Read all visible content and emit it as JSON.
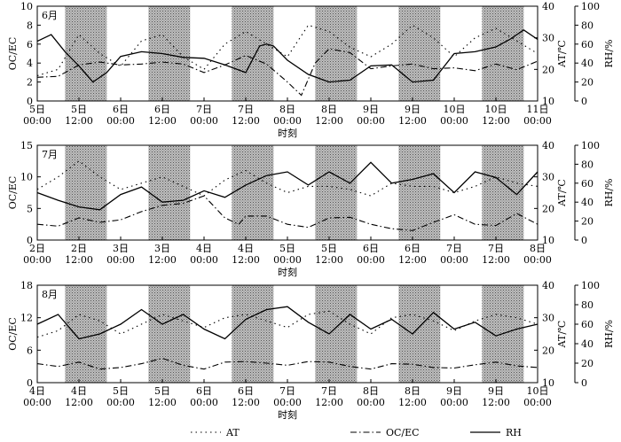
{
  "chart_data": [
    {
      "type": "line",
      "month_label": "6月",
      "x_tick_labels": [
        [
          "5日",
          "00:00"
        ],
        [
          "5日",
          "12:00"
        ],
        [
          "6日",
          "00:00"
        ],
        [
          "6日",
          "12:00"
        ],
        [
          "7日",
          "00:00"
        ],
        [
          "7日",
          "12:00"
        ],
        [
          "8日",
          "00:00"
        ],
        [
          "8日",
          "12:00"
        ],
        [
          "9日",
          "00:00"
        ],
        [
          "9日",
          "12:00"
        ],
        [
          "10日",
          "00:00"
        ],
        [
          "10日",
          "12:00"
        ],
        [
          "11日",
          "00:00"
        ]
      ],
      "xlabel": "时刻",
      "left_axis": {
        "label": "OC/EC",
        "ylim": [
          0,
          10
        ],
        "ticks": [
          "0",
          "2",
          "4",
          "6",
          "8",
          "10"
        ]
      },
      "right_axis_at": {
        "label": "AT/℃",
        "ylim": [
          10,
          40
        ],
        "ticks": [
          "10",
          "20",
          "30",
          "40"
        ]
      },
      "right_axis_rh": {
        "label": "RH/%",
        "ylim": [
          0,
          100
        ],
        "ticks": [
          "0",
          "20",
          "40",
          "60",
          "80",
          "100"
        ]
      },
      "x_range_hours": [
        0,
        144
      ],
      "shaded_periods_hours": [
        [
          8,
          20
        ],
        [
          32,
          44
        ],
        [
          56,
          68
        ],
        [
          80,
          92
        ],
        [
          104,
          116
        ],
        [
          128,
          140
        ]
      ],
      "series": [
        {
          "name": "AT",
          "axis": "at",
          "style": "dotted",
          "x": [
            0,
            6,
            12,
            18,
            24,
            30,
            36,
            42,
            48,
            54,
            60,
            66,
            72,
            78,
            84,
            90,
            96,
            102,
            108,
            114,
            120,
            126,
            132,
            138,
            144
          ],
          "y": [
            18,
            20,
            31,
            25,
            21,
            29,
            31,
            24,
            20,
            28,
            32,
            28,
            24,
            34,
            32,
            27,
            24,
            28,
            34,
            30,
            24,
            30,
            33,
            29,
            25
          ]
        },
        {
          "name": "OC/EC",
          "axis": "left",
          "style": "dashdot",
          "x": [
            0,
            6,
            12,
            18,
            24,
            30,
            36,
            42,
            48,
            54,
            60,
            66,
            72,
            76,
            80,
            84,
            90,
            96,
            102,
            108,
            114,
            120,
            126,
            132,
            138,
            144
          ],
          "y": [
            2.5,
            2.6,
            3.8,
            4.1,
            3.8,
            3.9,
            4.1,
            3.9,
            3.0,
            3.8,
            4.8,
            3.9,
            2.0,
            0.6,
            4.0,
            5.5,
            5.1,
            3.4,
            3.7,
            3.9,
            3.4,
            3.5,
            3.2,
            3.9,
            3.3,
            4.2
          ]
        },
        {
          "name": "RH",
          "axis": "rh",
          "style": "solid",
          "x": [
            0,
            4,
            8,
            12,
            16,
            20,
            24,
            30,
            36,
            42,
            48,
            54,
            60,
            64,
            66,
            68,
            72,
            78,
            84,
            90,
            96,
            102,
            108,
            114,
            120,
            126,
            132,
            136,
            140,
            144
          ],
          "y": [
            63,
            70,
            52,
            37,
            20,
            30,
            47,
            52,
            50,
            46,
            45,
            38,
            30,
            58,
            60,
            58,
            43,
            28,
            20,
            22,
            37,
            38,
            20,
            22,
            50,
            52,
            57,
            65,
            75,
            65
          ]
        }
      ]
    },
    {
      "type": "line",
      "month_label": "7月",
      "x_tick_labels": [
        [
          "2日",
          "00:00"
        ],
        [
          "2日",
          "12:00"
        ],
        [
          "3日",
          "00:00"
        ],
        [
          "3日",
          "12:00"
        ],
        [
          "4日",
          "00:00"
        ],
        [
          "4日",
          "12:00"
        ],
        [
          "5日",
          "00:00"
        ],
        [
          "5日",
          "12:00"
        ],
        [
          "6日",
          "00:00"
        ],
        [
          "6日",
          "12:00"
        ],
        [
          "7日",
          "00:00"
        ],
        [
          "7日",
          "12:00"
        ],
        [
          "8日",
          "00:00"
        ]
      ],
      "xlabel": "时刻",
      "left_axis": {
        "label": "OC/EC",
        "ylim": [
          0,
          15
        ],
        "ticks": [
          "0",
          "5",
          "10",
          "15"
        ]
      },
      "right_axis_at": {
        "label": "AT/℃",
        "ylim": [
          10,
          40
        ],
        "ticks": [
          "10",
          "20",
          "30",
          "40"
        ]
      },
      "right_axis_rh": {
        "label": "RH/%",
        "ylim": [
          0,
          100
        ],
        "ticks": [
          "0",
          "20",
          "40",
          "60",
          "80",
          "100"
        ]
      },
      "x_range_hours": [
        0,
        144
      ],
      "shaded_periods_hours": [
        [
          8,
          20
        ],
        [
          32,
          44
        ],
        [
          56,
          68
        ],
        [
          80,
          92
        ],
        [
          104,
          116
        ],
        [
          128,
          140
        ]
      ],
      "series": [
        {
          "name": "AT",
          "axis": "at",
          "style": "dotted",
          "x": [
            0,
            6,
            12,
            18,
            24,
            30,
            36,
            42,
            48,
            54,
            60,
            66,
            72,
            78,
            84,
            90,
            96,
            102,
            108,
            114,
            120,
            126,
            132,
            138,
            144
          ],
          "y": [
            26,
            30,
            35,
            30,
            26,
            28,
            30,
            27,
            24,
            29,
            32,
            28,
            25,
            27,
            27,
            26,
            24,
            28,
            27,
            27,
            25,
            27,
            30,
            28,
            27
          ]
        },
        {
          "name": "OC/EC",
          "axis": "left",
          "style": "dashdot",
          "x": [
            0,
            6,
            12,
            18,
            24,
            30,
            36,
            42,
            48,
            54,
            58,
            60,
            66,
            72,
            78,
            84,
            90,
            96,
            102,
            108,
            114,
            120,
            126,
            132,
            138,
            144
          ],
          "y": [
            2.5,
            2.2,
            3.5,
            2.8,
            3.2,
            4.5,
            5.5,
            5.8,
            7.0,
            3.5,
            2.5,
            3.8,
            3.8,
            2.5,
            2.0,
            3.5,
            3.6,
            2.5,
            1.8,
            1.5,
            2.8,
            4.0,
            2.5,
            2.3,
            4.2,
            2.5
          ]
        },
        {
          "name": "RH",
          "axis": "rh",
          "style": "solid",
          "x": [
            0,
            6,
            12,
            18,
            24,
            30,
            36,
            42,
            48,
            54,
            60,
            66,
            72,
            78,
            84,
            90,
            96,
            102,
            108,
            114,
            120,
            126,
            132,
            138,
            144
          ],
          "y": [
            50,
            42,
            35,
            32,
            48,
            56,
            40,
            42,
            52,
            45,
            58,
            68,
            72,
            58,
            72,
            60,
            82,
            60,
            64,
            70,
            50,
            72,
            66,
            48,
            72
          ]
        }
      ]
    },
    {
      "type": "line",
      "month_label": "8月",
      "x_tick_labels": [
        [
          "4日",
          "00:00"
        ],
        [
          "4日",
          "12:00"
        ],
        [
          "5日",
          "00:00"
        ],
        [
          "5日",
          "12:00"
        ],
        [
          "6日",
          "00:00"
        ],
        [
          "6日",
          "12:00"
        ],
        [
          "7日",
          "00:00"
        ],
        [
          "7日",
          "12:00"
        ],
        [
          "8日",
          "00:00"
        ],
        [
          "8日",
          "12:00"
        ],
        [
          "9日",
          "00:00"
        ],
        [
          "9日",
          "12:00"
        ],
        [
          "10日",
          "00:00"
        ]
      ],
      "xlabel": "时刻",
      "left_axis": {
        "label": "OC/EC",
        "ylim": [
          0,
          18
        ],
        "ticks": [
          "0",
          "6",
          "12",
          "18"
        ]
      },
      "right_axis_at": {
        "label": "AT/℃",
        "ylim": [
          10,
          40
        ],
        "ticks": [
          "10",
          "20",
          "30",
          "40"
        ]
      },
      "right_axis_rh": {
        "label": "RH/%",
        "ylim": [
          0,
          100
        ],
        "ticks": [
          "0",
          "20",
          "40",
          "60",
          "80",
          "100"
        ]
      },
      "x_range_hours": [
        0,
        144
      ],
      "shaded_periods_hours": [
        [
          8,
          20
        ],
        [
          32,
          44
        ],
        [
          56,
          68
        ],
        [
          80,
          92
        ],
        [
          104,
          116
        ],
        [
          128,
          140
        ]
      ],
      "series": [
        {
          "name": "AT",
          "axis": "at",
          "style": "dotted",
          "x": [
            0,
            6,
            12,
            18,
            24,
            30,
            36,
            42,
            48,
            54,
            60,
            66,
            72,
            78,
            84,
            90,
            96,
            102,
            108,
            114,
            120,
            126,
            132,
            138,
            144
          ],
          "y": [
            24,
            26,
            31,
            29,
            25,
            28,
            31,
            29,
            27,
            30,
            31,
            29,
            27,
            31,
            32,
            28,
            25,
            30,
            31,
            29,
            26,
            29,
            31,
            30,
            28
          ]
        },
        {
          "name": "OC/EC",
          "axis": "left",
          "style": "dashdot",
          "x": [
            0,
            6,
            12,
            18,
            24,
            30,
            36,
            42,
            48,
            54,
            60,
            66,
            72,
            78,
            84,
            90,
            96,
            102,
            108,
            114,
            120,
            126,
            132,
            138,
            144
          ],
          "y": [
            3.5,
            3.0,
            3.8,
            2.5,
            2.8,
            3.5,
            4.5,
            3.2,
            2.5,
            3.8,
            3.9,
            3.6,
            3.2,
            3.9,
            3.8,
            3.0,
            2.5,
            3.5,
            3.4,
            2.8,
            2.7,
            3.3,
            3.8,
            3.1,
            2.8
          ]
        },
        {
          "name": "RH",
          "axis": "rh",
          "style": "solid",
          "x": [
            0,
            6,
            12,
            18,
            24,
            30,
            36,
            42,
            48,
            54,
            60,
            66,
            72,
            78,
            84,
            90,
            96,
            102,
            108,
            114,
            120,
            126,
            132,
            138,
            144
          ],
          "y": [
            60,
            70,
            45,
            50,
            60,
            75,
            60,
            70,
            55,
            45,
            65,
            75,
            78,
            62,
            50,
            70,
            55,
            65,
            50,
            72,
            55,
            62,
            48,
            55,
            60
          ]
        }
      ]
    }
  ],
  "legend": [
    {
      "label": "AT",
      "style": "dotted"
    },
    {
      "label": "OC/EC",
      "style": "dashdot"
    },
    {
      "label": "RH",
      "style": "solid"
    }
  ]
}
